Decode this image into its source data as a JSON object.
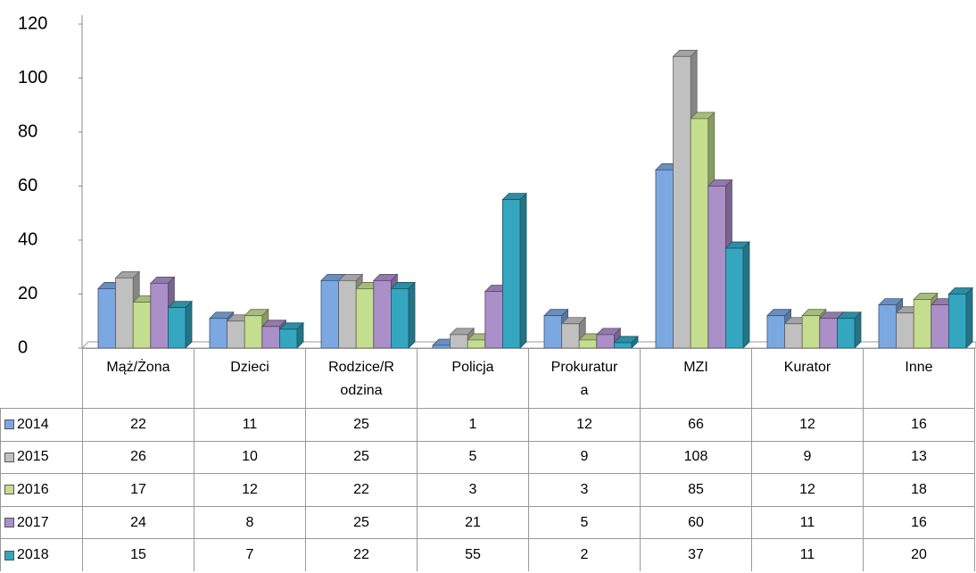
{
  "chart_data": {
    "type": "bar3d",
    "categories": [
      "Mąż/Żona",
      "Dzieci",
      "Rodzice/Rodzina",
      "Policja",
      "Prokuratura",
      "MZI",
      "Kurator",
      "Inne"
    ],
    "series": [
      {
        "name": "2014",
        "color": "#7ca8e2",
        "values": [
          22,
          11,
          25,
          1,
          12,
          66,
          12,
          16
        ]
      },
      {
        "name": "2015",
        "color": "#c0c0c0",
        "values": [
          26,
          10,
          25,
          5,
          9,
          108,
          9,
          13
        ]
      },
      {
        "name": "2016",
        "color": "#c4dd8f",
        "values": [
          17,
          12,
          22,
          3,
          3,
          85,
          12,
          18
        ]
      },
      {
        "name": "2017",
        "color": "#ab8fc9",
        "values": [
          24,
          8,
          25,
          21,
          5,
          60,
          11,
          16
        ]
      },
      {
        "name": "2018",
        "color": "#35a6c0",
        "values": [
          15,
          7,
          22,
          55,
          2,
          37,
          11,
          20
        ]
      }
    ],
    "ylim": [
      0,
      120
    ],
    "yticks": [
      0,
      20,
      40,
      60,
      80,
      100,
      120
    ]
  }
}
